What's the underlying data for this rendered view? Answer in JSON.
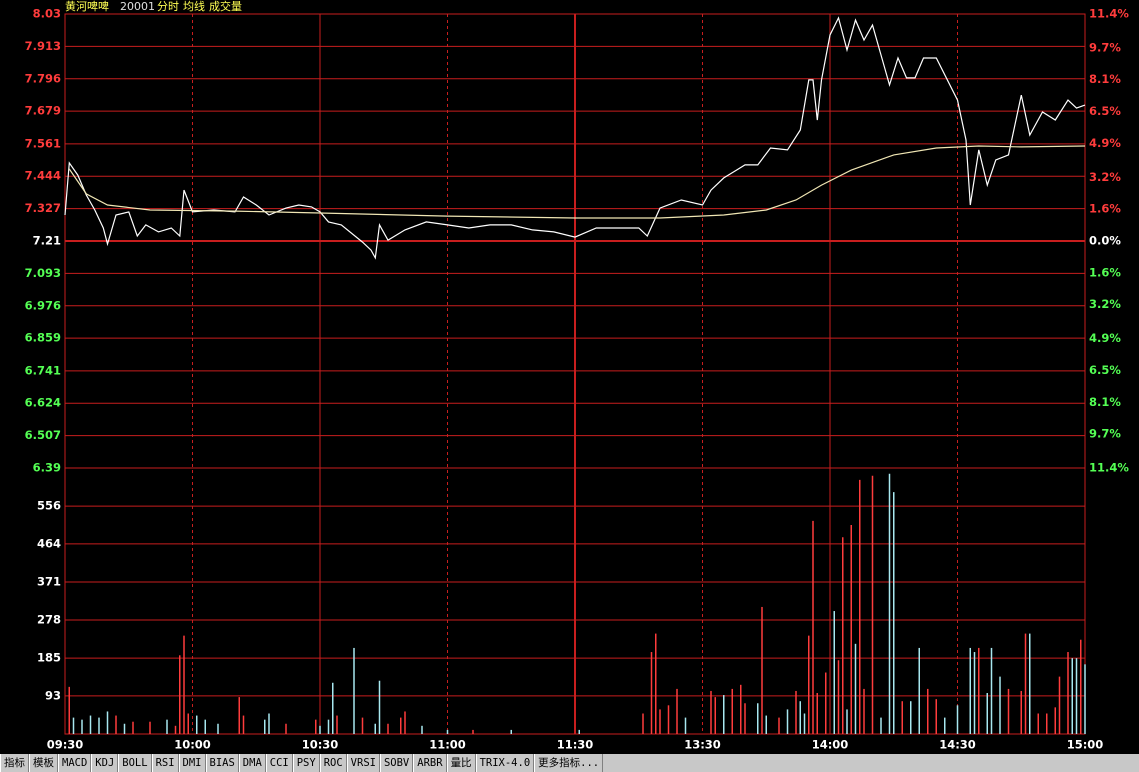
{
  "header": {
    "name": "黄河啤啤",
    "code": "20001"
  },
  "chart_data": [
    {
      "type": "line",
      "ylim": [
        6.39,
        8.03
      ],
      "yticks": [
        8.03,
        7.913,
        7.796,
        7.679,
        7.561,
        7.444,
        7.327,
        7.21,
        7.093,
        6.976,
        6.859,
        6.741,
        6.624,
        6.507,
        6.39
      ],
      "y2lim": [
        -11.4,
        11.4
      ],
      "y2ticks": [
        {
          "value": 11.4,
          "label": "11.4%"
        },
        {
          "value": 9.7,
          "label": "9.7%"
        },
        {
          "value": 8.1,
          "label": "8.1%"
        },
        {
          "value": 6.5,
          "label": "6.5%"
        },
        {
          "value": 4.9,
          "label": "4.9%"
        },
        {
          "value": 3.2,
          "label": "3.2%"
        },
        {
          "value": 1.6,
          "label": "1.6%"
        },
        {
          "value": 0.0,
          "label": "0.0%"
        },
        {
          "value": -1.6,
          "label": "1.6%"
        },
        {
          "value": -3.2,
          "label": "3.2%"
        },
        {
          "value": -4.9,
          "label": "4.9%"
        },
        {
          "value": -6.5,
          "label": "6.5%"
        },
        {
          "value": -8.1,
          "label": "8.1%"
        },
        {
          "value": -9.7,
          "label": "9.7%"
        },
        {
          "value": -11.4,
          "label": "11.4%"
        }
      ],
      "grid": true,
      "series": [
        {
          "name": "分时",
          "color": "#ffffff",
          "x": [
            0,
            1,
            3,
            5,
            7,
            9,
            10,
            12,
            15,
            17,
            19,
            22,
            25,
            27,
            28,
            30,
            35,
            40,
            42,
            45,
            48,
            52,
            55,
            58,
            60,
            62,
            65,
            70,
            72,
            73,
            74,
            76,
            80,
            85,
            90,
            95,
            100,
            105,
            110,
            115,
            120,
            125,
            130,
            135,
            137,
            140,
            145,
            150,
            152,
            155,
            158,
            160,
            163,
            166,
            170,
            173,
            175,
            176,
            177,
            178,
            180,
            182,
            184,
            186,
            188,
            190,
            192,
            194,
            196,
            198,
            200,
            202,
            205,
            210,
            212,
            213,
            215,
            217,
            219,
            222,
            225,
            227,
            230,
            233,
            236,
            238,
            240
          ],
          "values": [
            7.304,
            7.492,
            7.448,
            7.376,
            7.322,
            7.257,
            7.199,
            7.304,
            7.315,
            7.228,
            7.268,
            7.243,
            7.257,
            7.228,
            7.394,
            7.315,
            7.322,
            7.315,
            7.369,
            7.34,
            7.304,
            7.329,
            7.34,
            7.333,
            7.315,
            7.279,
            7.268,
            7.206,
            7.177,
            7.149,
            7.268,
            7.213,
            7.25,
            7.279,
            7.268,
            7.257,
            7.268,
            7.268,
            7.25,
            7.243,
            7.224,
            7.257,
            7.257,
            7.257,
            7.228,
            7.329,
            7.358,
            7.34,
            7.394,
            7.438,
            7.466,
            7.485,
            7.485,
            7.546,
            7.539,
            7.611,
            7.792,
            7.792,
            7.647,
            7.792,
            7.954,
            8.016,
            7.9,
            8.008,
            7.936,
            7.99,
            7.882,
            7.774,
            7.871,
            7.799,
            7.799,
            7.871,
            7.871,
            7.719,
            7.575,
            7.34,
            7.539,
            7.412,
            7.503,
            7.521,
            7.737,
            7.593,
            7.676,
            7.647,
            7.719,
            7.69,
            7.701
          ]
        },
        {
          "name": "均线",
          "color": "#f0e6b4",
          "x": [
            1,
            5,
            10,
            20,
            40,
            60,
            90,
            120,
            140,
            155,
            165,
            172,
            178,
            185,
            195,
            205,
            215,
            225,
            240
          ],
          "values": [
            7.47,
            7.38,
            7.34,
            7.322,
            7.318,
            7.311,
            7.3,
            7.293,
            7.293,
            7.304,
            7.322,
            7.358,
            7.412,
            7.466,
            7.521,
            7.546,
            7.553,
            7.55,
            7.553
          ]
        }
      ]
    },
    {
      "type": "bar",
      "xlim": [
        0,
        240
      ],
      "xticks": [
        {
          "value": 0,
          "label": "09:30"
        },
        {
          "value": 30,
          "label": "10:00"
        },
        {
          "value": 60,
          "label": "10:30"
        },
        {
          "value": 90,
          "label": "11:00"
        },
        {
          "value": 120,
          "label": "11:30"
        },
        {
          "value": 150,
          "label": "13:30"
        },
        {
          "value": 180,
          "label": "14:00"
        },
        {
          "value": 210,
          "label": "14:30"
        },
        {
          "value": 240,
          "label": "15:00"
        }
      ],
      "ylim": [
        0,
        649
      ],
      "yticks": [
        556,
        464,
        371,
        278,
        185,
        93
      ],
      "grid": true,
      "series": [
        {
          "name": "成交量",
          "x": [
            1,
            2,
            4,
            6,
            8,
            10,
            12,
            14,
            16,
            20,
            24,
            26,
            27,
            28,
            29,
            31,
            33,
            36,
            41,
            42,
            47,
            48,
            52,
            59,
            60,
            62,
            63,
            64,
            68,
            70,
            73,
            74,
            76,
            79,
            80,
            84,
            90,
            96,
            105,
            121,
            136,
            138,
            139,
            140,
            142,
            144,
            146,
            152,
            153,
            155,
            157,
            159,
            160,
            163,
            164,
            165,
            168,
            170,
            172,
            173,
            174,
            175,
            176,
            177,
            179,
            181,
            182,
            183,
            184,
            185,
            186,
            187,
            188,
            190,
            192,
            194,
            195,
            197,
            199,
            201,
            203,
            205,
            207,
            210,
            213,
            214,
            215,
            217,
            218,
            220,
            222,
            225,
            226,
            227,
            229,
            231,
            233,
            234,
            236,
            237,
            238,
            239,
            240
          ],
          "values": [
            115,
            40,
            35,
            45,
            40,
            55,
            45,
            25,
            30,
            30,
            35,
            20,
            192,
            240,
            50,
            45,
            35,
            25,
            90,
            45,
            35,
            50,
            25,
            35,
            20,
            35,
            125,
            45,
            210,
            40,
            25,
            130,
            25,
            40,
            55,
            20,
            10,
            10,
            10,
            10,
            50,
            200,
            245,
            60,
            70,
            110,
            40,
            105,
            90,
            95,
            110,
            120,
            75,
            75,
            310,
            45,
            40,
            60,
            105,
            80,
            50,
            240,
            520,
            100,
            150,
            300,
            180,
            480,
            60,
            510,
            220,
            620,
            110,
            630,
            40,
            635,
            590,
            80,
            80,
            210,
            110,
            85,
            40,
            70,
            210,
            200,
            210,
            100,
            210,
            140,
            110,
            105,
            245,
            245,
            50,
            50,
            65,
            140,
            200,
            185,
            185,
            230,
            170
          ],
          "colors": [
            "#ff3c3c",
            "#a8e8f0",
            "#a8e8f0",
            "#a8e8f0",
            "#a8e8f0",
            "#a8e8f0",
            "#ff3c3c",
            "#a8e8f0",
            "#ff3c3c",
            "#ff3c3c",
            "#a8e8f0",
            "#ff3c3c",
            "#ff3c3c",
            "#ff3c3c",
            "#ff3c3c",
            "#a8e8f0",
            "#a8e8f0",
            "#a8e8f0",
            "#ff3c3c",
            "#ff3c3c",
            "#a8e8f0",
            "#a8e8f0",
            "#ff3c3c",
            "#ff3c3c",
            "#a8e8f0",
            "#a8e8f0",
            "#a8e8f0",
            "#ff3c3c",
            "#a8e8f0",
            "#ff3c3c",
            "#a8e8f0",
            "#a8e8f0",
            "#ff3c3c",
            "#ff3c3c",
            "#ff3c3c",
            "#a8e8f0",
            "#a8e8f0",
            "#ff3c3c",
            "#a8e8f0",
            "#a8e8f0",
            "#ff3c3c",
            "#ff3c3c",
            "#ff3c3c",
            "#ff3c3c",
            "#ff3c3c",
            "#ff3c3c",
            "#a8e8f0",
            "#ff3c3c",
            "#ff3c3c",
            "#a8e8f0",
            "#ff3c3c",
            "#ff3c3c",
            "#ff3c3c",
            "#a8e8f0",
            "#ff3c3c",
            "#a8e8f0",
            "#ff3c3c",
            "#a8e8f0",
            "#ff3c3c",
            "#a8e8f0",
            "#a8e8f0",
            "#ff3c3c",
            "#ff3c3c",
            "#ff3c3c",
            "#ff3c3c",
            "#a8e8f0",
            "#ff3c3c",
            "#ff3c3c",
            "#a8e8f0",
            "#ff3c3c",
            "#a8e8f0",
            "#ff3c3c",
            "#ff3c3c",
            "#ff3c3c",
            "#a8e8f0",
            "#a8e8f0",
            "#a8e8f0",
            "#ff3c3c",
            "#a8e8f0",
            "#a8e8f0",
            "#ff3c3c",
            "#ff3c3c",
            "#a8e8f0",
            "#a8e8f0",
            "#a8e8f0",
            "#a8e8f0",
            "#ff3c3c",
            "#a8e8f0",
            "#a8e8f0",
            "#a8e8f0",
            "#ff3c3c",
            "#ff3c3c",
            "#ff3c3c",
            "#a8e8f0",
            "#ff3c3c",
            "#ff3c3c",
            "#ff3c3c",
            "#ff3c3c",
            "#ff3c3c",
            "#a8e8f0",
            "#a8e8f0",
            "#ff3c3c",
            "#a8e8f0"
          ]
        }
      ]
    }
  ],
  "toolbar": {
    "tabs": [
      "指标",
      "模板",
      "MACD",
      "KDJ",
      "BOLL",
      "RSI",
      "DMI",
      "BIAS",
      "DMA",
      "CCI",
      "PSY",
      "ROC",
      "VRSI",
      "SOBV",
      "ARBR",
      "量比",
      "TRIX-4.0",
      "更多指标..."
    ]
  }
}
